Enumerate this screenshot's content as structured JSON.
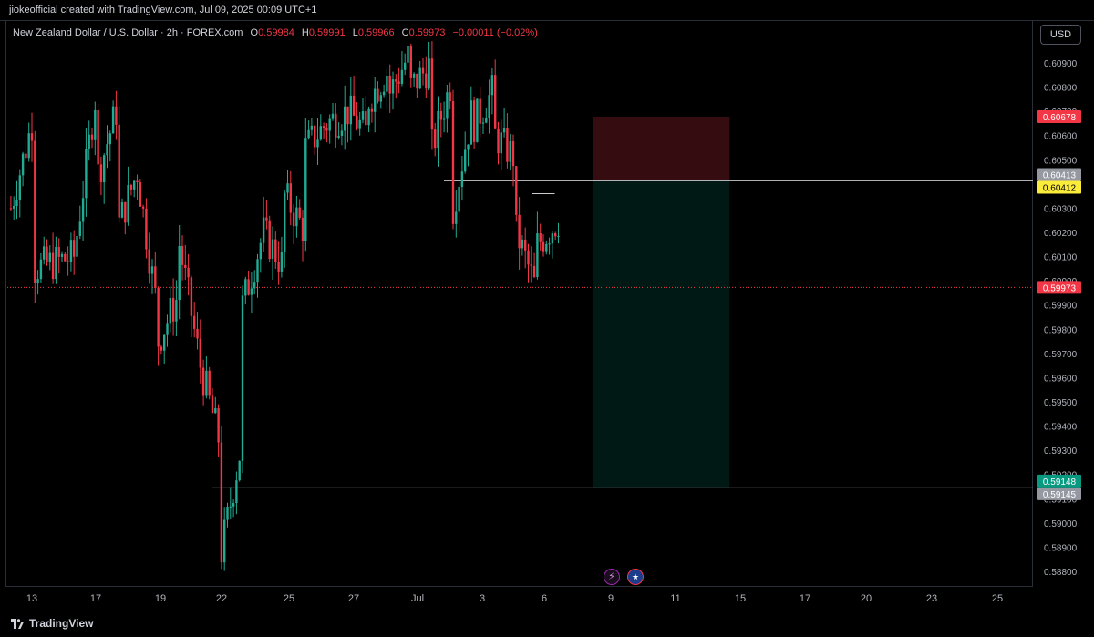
{
  "header": {
    "attribution": "jiokeofficial created with TradingView.com, Jul 09, 2025 00:09 UTC+1"
  },
  "legend": {
    "symbol": "New Zealand Dollar / U.S. Dollar · 2h · FOREX.com",
    "o_label": "O",
    "o_value": "0.59984",
    "h_label": "H",
    "h_value": "0.59991",
    "l_label": "L",
    "l_value": "0.59966",
    "c_label": "C",
    "c_value": "0.59973",
    "change": "−0.00011 (−0.02%)"
  },
  "currency_button": "USD",
  "footer": {
    "brand": "TradingView"
  },
  "icons": {
    "event_1": "lightning-icon",
    "event_2": "us-flag-icon"
  },
  "colors": {
    "up": "#22ab94",
    "down": "#f23645",
    "stop_zone": "#f23645",
    "target_zone": "#089981",
    "entry": "#fbeb3b"
  },
  "chart_data": {
    "type": "candlestick",
    "instrument": "New Zealand Dollar / U.S. Dollar",
    "interval": "2h",
    "ylim": [
      0.5875,
      0.6097
    ],
    "y_ticks": [
      "0.60900",
      "0.60800",
      "0.60700",
      "0.60600",
      "0.60500",
      "0.60400",
      "0.60300",
      "0.60200",
      "0.60100",
      "0.60000",
      "0.59900",
      "0.59800",
      "0.59700",
      "0.59600",
      "0.59500",
      "0.59400",
      "0.59300",
      "0.59200",
      "0.59100",
      "0.59000",
      "0.58900",
      "0.58800"
    ],
    "x_ticks": [
      "13",
      "17",
      "19",
      "22",
      "25",
      "27",
      "Jul",
      "3",
      "6",
      "9",
      "11",
      "15",
      "17",
      "20",
      "23",
      "25"
    ],
    "price_path": [
      {
        "date": "Jun 12",
        "price": 0.603
      },
      {
        "date": "Jun 13",
        "price": 0.6065
      },
      {
        "date": "Jun 13",
        "price": 0.6005
      },
      {
        "date": "Jun 15",
        "price": 0.601
      },
      {
        "date": "Jun 16",
        "price": 0.6075
      },
      {
        "date": "Jun 16",
        "price": 0.604
      },
      {
        "date": "Jun 17",
        "price": 0.607
      },
      {
        "date": "Jun 17",
        "price": 0.602
      },
      {
        "date": "Jun 18",
        "price": 0.6045
      },
      {
        "date": "Jun 19",
        "price": 0.5985
      },
      {
        "date": "Jun 19",
        "price": 0.5975
      },
      {
        "date": "Jun 20",
        "price": 0.5995
      },
      {
        "date": "Jun 20",
        "price": 0.6015
      },
      {
        "date": "Jun 21",
        "price": 0.5965
      },
      {
        "date": "Jun 22",
        "price": 0.593
      },
      {
        "date": "Jun 22",
        "price": 0.5888
      },
      {
        "date": "Jun 23",
        "price": 0.5935
      },
      {
        "date": "Jun 23",
        "price": 0.599
      },
      {
        "date": "Jun 24",
        "price": 0.602
      },
      {
        "date": "Jun 25",
        "price": 0.6005
      },
      {
        "date": "Jun 25",
        "price": 0.6035
      },
      {
        "date": "Jun 26",
        "price": 0.602
      },
      {
        "date": "Jun 26",
        "price": 0.6055
      },
      {
        "date": "Jun 27",
        "price": 0.6065
      },
      {
        "date": "Jun 28",
        "price": 0.607
      },
      {
        "date": "Jun 29",
        "price": 0.606
      },
      {
        "date": "Jun 29",
        "price": 0.6075
      },
      {
        "date": "Jun 30",
        "price": 0.6088
      },
      {
        "date": "Jun 30",
        "price": 0.6078
      },
      {
        "date": "Jul 1",
        "price": 0.6095
      },
      {
        "date": "Jul 1",
        "price": 0.608
      },
      {
        "date": "Jul 2",
        "price": 0.609
      },
      {
        "date": "Jul 2",
        "price": 0.6055
      },
      {
        "date": "Jul 3",
        "price": 0.6085
      },
      {
        "date": "Jul 3",
        "price": 0.603
      },
      {
        "date": "Jul 4",
        "price": 0.6075
      },
      {
        "date": "Jul 4",
        "price": 0.6065
      },
      {
        "date": "Jul 5",
        "price": 0.608
      },
      {
        "date": "Jul 5",
        "price": 0.606
      },
      {
        "date": "Jul 6",
        "price": 0.605
      },
      {
        "date": "Jul 6",
        "price": 0.602
      },
      {
        "date": "Jul 7",
        "price": 0.5995
      },
      {
        "date": "Jul 7",
        "price": 0.6015
      },
      {
        "date": "Jul 8",
        "price": 0.6025
      },
      {
        "date": "Jul 8",
        "price": 0.6005
      },
      {
        "date": "Jul 8",
        "price": 0.5985
      },
      {
        "date": "Jul 8",
        "price": 0.5997
      }
    ],
    "price_labels": [
      {
        "text": "0.60678",
        "value": 0.60678,
        "role": "stop"
      },
      {
        "text": "0.60413",
        "value": 0.60413,
        "role": "level"
      },
      {
        "text": "0.60412",
        "value": 0.60412,
        "role": "entry"
      },
      {
        "text": "0.59973",
        "value": 0.59973,
        "role": "last"
      },
      {
        "text": "0.59148",
        "value": 0.59148,
        "role": "target"
      },
      {
        "text": "0.59145",
        "value": 0.59145,
        "role": "level"
      }
    ],
    "annotations": {
      "horizontal_lines": [
        {
          "value": 0.60413,
          "from": "Jul 3",
          "to": "Jul 16"
        },
        {
          "value": 0.59145,
          "from": "Jun 22",
          "to": "Jul 16"
        }
      ],
      "swing_high_marker": {
        "value": 0.6036,
        "from": "Jul 7",
        "to": "Jul 8"
      },
      "short_position": {
        "from": "Jul 10",
        "to": "Jul 16",
        "entry": 0.60412,
        "stop": 0.60678,
        "target": 0.59148
      },
      "last_price_line": 0.59973
    }
  }
}
